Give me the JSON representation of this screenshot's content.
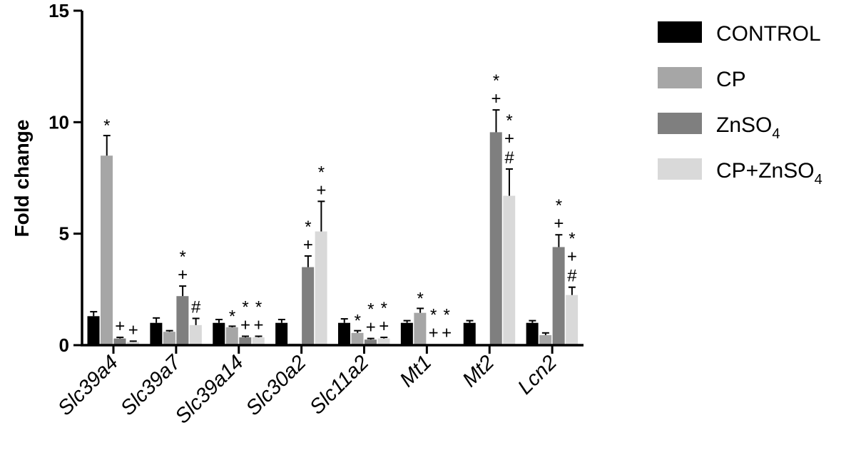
{
  "chart_data": {
    "type": "bar",
    "title": "",
    "xlabel": "",
    "ylabel": "Fold change",
    "ylim": [
      0,
      15
    ],
    "yticks": [
      0,
      5,
      10,
      15
    ],
    "grid": false,
    "legend_position": "top-right",
    "categories": [
      "Slc39a4",
      "Slc39a7",
      "Slc39a14",
      "Slc30a2",
      "Slc11a2",
      "Mt1",
      "Mt2",
      "Lcn2"
    ],
    "series": [
      {
        "name": "CONTROL",
        "color": "#000000",
        "values": [
          1.3,
          1.0,
          1.0,
          1.0,
          1.0,
          1.0,
          1.0,
          1.0
        ],
        "errors": [
          0.2,
          0.22,
          0.15,
          0.15,
          0.18,
          0.1,
          0.1,
          0.1
        ],
        "annotations": [
          "",
          "",
          "",
          "",
          "",
          "",
          "",
          ""
        ]
      },
      {
        "name": "CP",
        "color": "#a6a6a6",
        "values": [
          8.5,
          0.6,
          0.8,
          0.07,
          0.55,
          1.45,
          0.0,
          0.45
        ],
        "errors": [
          0.9,
          0.05,
          0.05,
          0.0,
          0.1,
          0.2,
          0.0,
          0.1
        ],
        "annotations": [
          "*",
          "",
          "*",
          "",
          "*",
          "*",
          "",
          ""
        ]
      },
      {
        "name": "ZnSO",
        "name_sub": "4",
        "color": "#7f7f7f",
        "values": [
          0.3,
          2.2,
          0.35,
          3.5,
          0.25,
          0.05,
          9.55,
          4.4
        ],
        "errors": [
          0.05,
          0.45,
          0.05,
          0.5,
          0.05,
          0.0,
          1.0,
          0.55
        ],
        "annotations": [
          "+",
          "*\n+",
          "*\n+",
          "*\n+",
          "*\n+",
          "*\n+",
          "*\n+",
          "*\n+"
        ]
      },
      {
        "name": "CP+ZnSO",
        "name_sub": "4",
        "color": "#d9d9d9",
        "values": [
          0.15,
          0.9,
          0.35,
          5.1,
          0.3,
          0.05,
          6.7,
          2.25
        ],
        "errors": [
          0.03,
          0.3,
          0.05,
          1.35,
          0.05,
          0.0,
          1.2,
          0.35
        ],
        "annotations": [
          "+",
          "#",
          "*\n+",
          "*\n+",
          "*\n+",
          "*\n+",
          "*\n+\n#",
          "*\n+\n#"
        ]
      }
    ]
  }
}
